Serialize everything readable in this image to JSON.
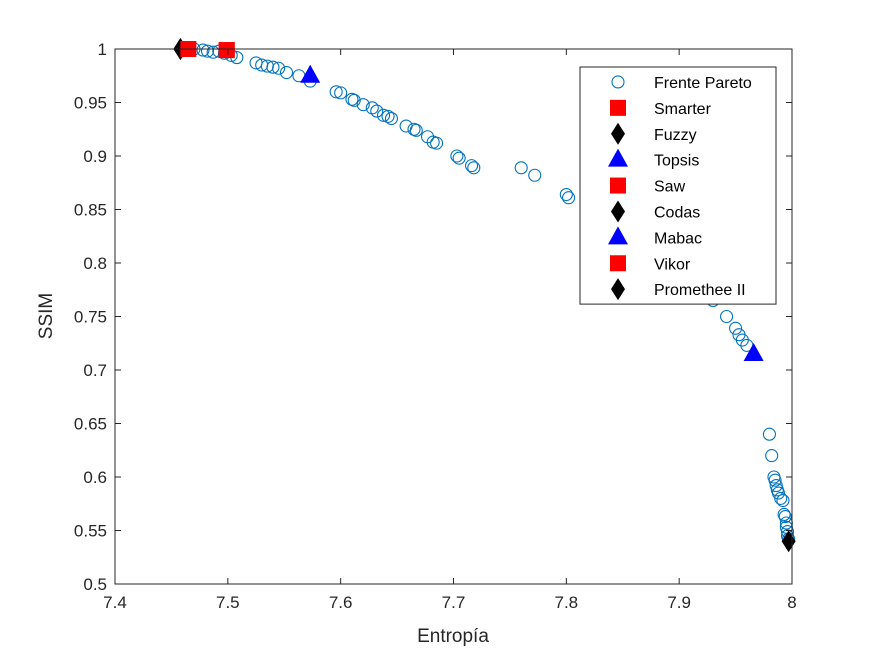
{
  "chart_data": {
    "type": "scatter",
    "xlabel": "Entropía",
    "ylabel": "SSIM",
    "xlim": [
      7.4,
      8.0
    ],
    "ylim": [
      0.5,
      1.0
    ],
    "xticks": [
      7.4,
      7.5,
      7.6,
      7.7,
      7.8,
      7.9,
      8.0
    ],
    "xtick_labels": [
      "7.4",
      "7.5",
      "7.6",
      "7.7",
      "7.8",
      "7.9",
      "8"
    ],
    "yticks": [
      0.5,
      0.55,
      0.6,
      0.65,
      0.7,
      0.75,
      0.8,
      0.85,
      0.9,
      0.95,
      1.0
    ],
    "ytick_labels": [
      "0.5",
      "0.55",
      "0.6",
      "0.65",
      "0.7",
      "0.75",
      "0.8",
      "0.85",
      "0.9",
      "0.95",
      "1"
    ],
    "grid": false,
    "legend_position": "top-right",
    "series": [
      {
        "name": "Frente Pareto",
        "marker": "circle-open",
        "color": "#0072BD",
        "points": [
          [
            7.465,
            1.0
          ],
          [
            7.47,
            1.0
          ],
          [
            7.478,
            0.999
          ],
          [
            7.482,
            0.998
          ],
          [
            7.487,
            0.997
          ],
          [
            7.492,
            0.998
          ],
          [
            7.497,
            0.996
          ],
          [
            7.503,
            0.994
          ],
          [
            7.508,
            0.992
          ],
          [
            7.525,
            0.987
          ],
          [
            7.53,
            0.985
          ],
          [
            7.535,
            0.984
          ],
          [
            7.54,
            0.983
          ],
          [
            7.545,
            0.982
          ],
          [
            7.552,
            0.978
          ],
          [
            7.563,
            0.975
          ],
          [
            7.573,
            0.97
          ],
          [
            7.596,
            0.96
          ],
          [
            7.6,
            0.959
          ],
          [
            7.61,
            0.953
          ],
          [
            7.612,
            0.952
          ],
          [
            7.62,
            0.948
          ],
          [
            7.628,
            0.945
          ],
          [
            7.632,
            0.942
          ],
          [
            7.638,
            0.938
          ],
          [
            7.642,
            0.937
          ],
          [
            7.645,
            0.935
          ],
          [
            7.658,
            0.928
          ],
          [
            7.665,
            0.925
          ],
          [
            7.667,
            0.924
          ],
          [
            7.677,
            0.918
          ],
          [
            7.682,
            0.913
          ],
          [
            7.685,
            0.912
          ],
          [
            7.703,
            0.9
          ],
          [
            7.705,
            0.898
          ],
          [
            7.716,
            0.891
          ],
          [
            7.718,
            0.889
          ],
          [
            7.76,
            0.889
          ],
          [
            7.772,
            0.882
          ],
          [
            7.8,
            0.864
          ],
          [
            7.802,
            0.861
          ],
          [
            7.93,
            0.765
          ],
          [
            7.942,
            0.75
          ],
          [
            7.95,
            0.739
          ],
          [
            7.953,
            0.733
          ],
          [
            7.956,
            0.728
          ],
          [
            7.96,
            0.723
          ],
          [
            7.98,
            0.64
          ],
          [
            7.982,
            0.62
          ],
          [
            7.984,
            0.6
          ],
          [
            7.985,
            0.597
          ],
          [
            7.986,
            0.592
          ],
          [
            7.987,
            0.588
          ],
          [
            7.988,
            0.585
          ],
          [
            7.99,
            0.58
          ],
          [
            7.992,
            0.578
          ],
          [
            7.993,
            0.565
          ],
          [
            7.994,
            0.563
          ],
          [
            7.995,
            0.557
          ],
          [
            7.995,
            0.553
          ],
          [
            7.996,
            0.549
          ],
          [
            7.996,
            0.545
          ],
          [
            7.997,
            0.542
          ]
        ]
      },
      {
        "name": "Smarter",
        "marker": "square",
        "color": "#FF0000",
        "points": [
          [
            7.465,
            1.0
          ]
        ]
      },
      {
        "name": "Fuzzy",
        "marker": "diamond",
        "color": "#000000",
        "points": [
          [
            7.458,
            1.0
          ]
        ]
      },
      {
        "name": "Topsis",
        "marker": "triangle",
        "color": "#0000FF",
        "points": [
          [
            7.573,
            0.975
          ]
        ]
      },
      {
        "name": "Saw",
        "marker": "square",
        "color": "#FF0000",
        "points": [
          [
            7.499,
            0.999
          ]
        ]
      },
      {
        "name": "Codas",
        "marker": "diamond",
        "color": "#000000",
        "points": [
          [
            7.997,
            0.54
          ]
        ]
      },
      {
        "name": "Mabac",
        "marker": "triangle",
        "color": "#0000FF",
        "points": [
          [
            7.966,
            0.715
          ]
        ]
      },
      {
        "name": "Vikor",
        "marker": "square",
        "color": "#FF0000",
        "points": [
          [
            7.499,
            0.999
          ]
        ]
      },
      {
        "name": "Promethee II",
        "marker": "diamond",
        "color": "#000000",
        "points": [
          [
            7.458,
            1.0
          ]
        ]
      }
    ]
  }
}
